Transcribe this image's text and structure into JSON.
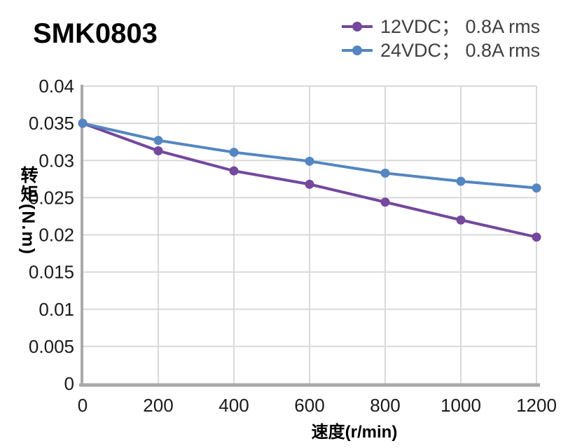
{
  "header": {
    "title": "SMK0803"
  },
  "legend": {
    "items": [
      {
        "label": "12VDC； 0.8A rms"
      },
      {
        "label": "24VDC； 0.8A rms"
      }
    ]
  },
  "chart_data": {
    "type": "line",
    "title": "SMK0803",
    "xlabel": "速度(r/min)",
    "ylabel": "转矩(N.m)",
    "x": [
      0,
      200,
      400,
      600,
      800,
      1000,
      1200
    ],
    "series": [
      {
        "name": "12VDC； 0.8A rms",
        "color": "#74489D",
        "values": [
          0.035,
          0.0313,
          0.0286,
          0.0268,
          0.0244,
          0.022,
          0.0197
        ]
      },
      {
        "name": "24VDC； 0.8A rms",
        "color": "#5486C1",
        "values": [
          0.035,
          0.0327,
          0.0311,
          0.0299,
          0.0283,
          0.0272,
          0.0263
        ]
      }
    ],
    "xlim": [
      0,
      1200
    ],
    "ylim": [
      0,
      0.04
    ],
    "xticks": [
      0,
      200,
      400,
      600,
      800,
      1000,
      1200
    ],
    "xtick_labels": [
      "0",
      "200",
      "400",
      "600",
      "800",
      "1000",
      "1200"
    ],
    "yticks": [
      0,
      0.005,
      0.01,
      0.015,
      0.02,
      0.025,
      0.03,
      0.035,
      0.04
    ],
    "ytick_labels": [
      "0",
      "0.005",
      "0.01",
      "0.015",
      "0.02",
      "0.025",
      "0.03",
      "0.035",
      "0.04"
    ],
    "grid": true,
    "legend_position": "top-right",
    "style": {
      "gridline_color": "#D9D9D9",
      "axis_color": "#A9A9A9",
      "tick_text_color": "#1A1A1A",
      "legend_text_color": "#3F3F3F",
      "title_color": "#000000",
      "line_width": 4,
      "marker_radius": 6.5
    }
  }
}
